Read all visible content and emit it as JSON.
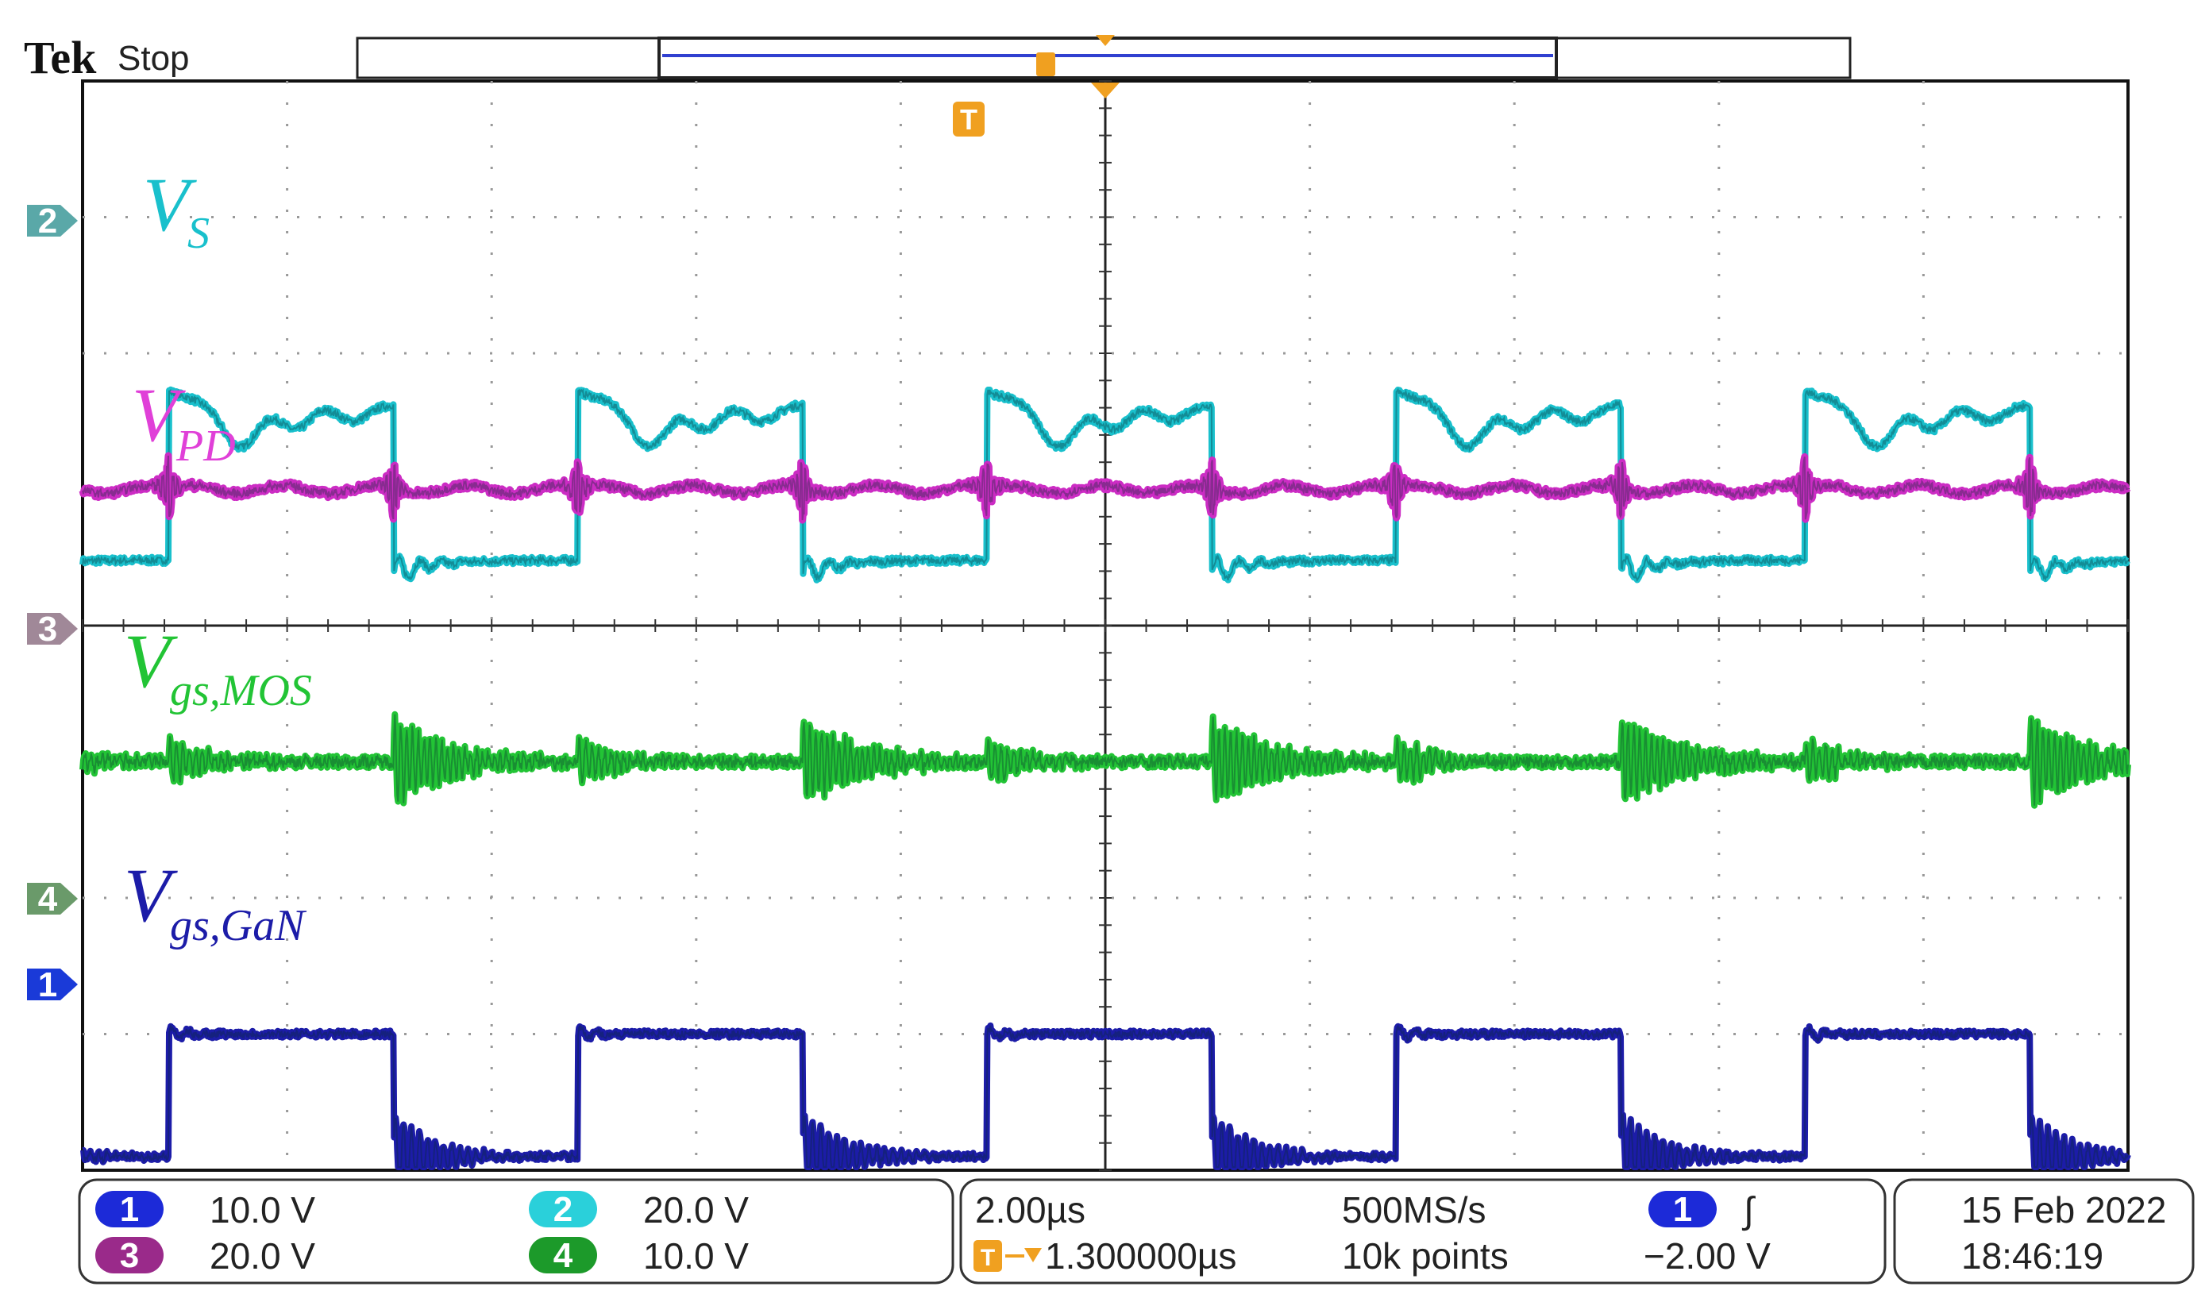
{
  "chart_data": {
    "type": "line",
    "title": "",
    "xlabel": "",
    "ylabel": "",
    "grid": true,
    "x_divisions": 10,
    "y_divisions": 8,
    "series": [
      {
        "name": "V",
        "subscript": "S",
        "channel": 2,
        "color": "#19c0cc",
        "low": -0.4,
        "high": 0.6,
        "period": 2.0,
        "duty": 0.55,
        "ringing": "damped-dip",
        "offset_div": 1.0
      },
      {
        "name": "V",
        "subscript": "PD",
        "channel": 3,
        "color": "#cc2cc4",
        "low": 0.0,
        "high": 0.0,
        "period": 2.0,
        "duty": 0.55,
        "ringing": "spikes",
        "offset_div": 1.0
      },
      {
        "name": "V",
        "subscript": "gs,MOS",
        "channel": 3,
        "color": "#22c435",
        "low": 0.0,
        "high": 0.0,
        "period": 2.0,
        "duty": 0.55,
        "ringing": "bursts",
        "offset_div": -1.0
      },
      {
        "name": "V",
        "subscript": "gs,GaN",
        "channel": 1,
        "color": "#1c1ca8",
        "low": -0.9,
        "high": 0.0,
        "period": 2.0,
        "duty": 0.55,
        "ringing": "edge",
        "offset_div": -3.0
      }
    ]
  },
  "header": {
    "brand": "Tek",
    "status": "Stop"
  },
  "markers": {
    "ch2": "2",
    "ch3": "3",
    "ch4": "4",
    "ch1": "1",
    "trigger": "T"
  },
  "channels": [
    {
      "num": "1",
      "scale": "10.0 V",
      "color": "#1c1cc8"
    },
    {
      "num": "2",
      "scale": "20.0 V",
      "color": "#2ad0da"
    },
    {
      "num": "3",
      "scale": "20.0 V",
      "color": "#a02090"
    },
    {
      "num": "4",
      "scale": "10.0 V",
      "color": "#22a02c"
    }
  ],
  "timebase": {
    "scale": "2.00µs",
    "sample_rate": "500MS/s",
    "delay": "1.300000µs",
    "record": "10k points"
  },
  "trigger": {
    "source": "1",
    "slope": "∫",
    "level": "−2.00 V"
  },
  "datetime": {
    "date": "15 Feb  2022",
    "time": "18:46:19"
  }
}
